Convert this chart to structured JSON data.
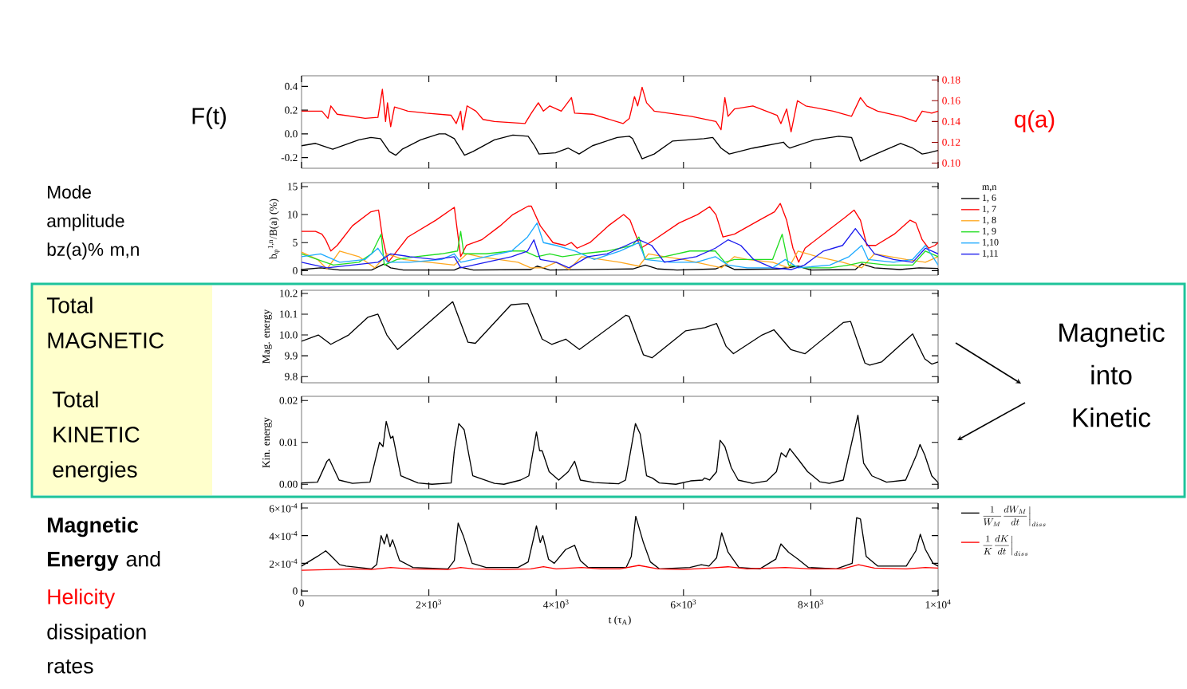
{
  "chart_data": [
    {
      "type": "line",
      "annotations": [
        "F(t)",
        "q(a)"
      ],
      "xlim": [
        0,
        10000
      ],
      "xticks": [
        0,
        2000,
        4000,
        6000,
        8000,
        10000
      ],
      "ylim": [
        -0.29,
        0.49
      ],
      "yticks": [
        -0.2,
        {
          "value": 0,
          "label": "0.0"
        },
        0.2,
        0.4
      ],
      "y2lim": [
        0.095,
        0.184
      ],
      "y2ticks": [
        {
          "value": 0.1,
          "label": "0.10"
        },
        0.12,
        0.14,
        0.16,
        0.18
      ],
      "tick_labels": "y",
      "series": [
        {
          "color": "#000000",
          "x": [
            0,
            220,
            490,
            900,
            1090,
            1240,
            1380,
            1480,
            1580,
            1870,
            2160,
            2260,
            2400,
            2560,
            2690,
            3030,
            3320,
            3560,
            3660,
            3730,
            3990,
            4190,
            4360,
            4570,
            4960,
            5150,
            5200,
            5350,
            5540,
            5830,
            6320,
            6460,
            6590,
            6720,
            7090,
            7570,
            7620,
            7670,
            8060,
            8440,
            8640,
            8780,
            8980,
            9410,
            9600,
            9750,
            9850,
            10000
          ],
          "values": [
            -0.1,
            -0.08,
            -0.13,
            -0.05,
            -0.03,
            -0.04,
            -0.15,
            -0.18,
            -0.13,
            -0.05,
            0.0,
            0.0,
            -0.04,
            -0.18,
            -0.15,
            -0.05,
            -0.01,
            -0.02,
            -0.1,
            -0.17,
            -0.16,
            -0.12,
            -0.17,
            -0.1,
            -0.03,
            -0.02,
            -0.04,
            -0.21,
            -0.17,
            -0.06,
            -0.04,
            -0.03,
            -0.12,
            -0.17,
            -0.12,
            -0.07,
            -0.1,
            -0.12,
            -0.05,
            -0.02,
            -0.03,
            -0.23,
            -0.18,
            -0.08,
            -0.12,
            -0.17,
            -0.16,
            -0.14
          ]
        },
        {
          "color": "#ff0000",
          "axis": "y2",
          "x": [
            0,
            320,
            415,
            460,
            560,
            1000,
            1200,
            1270,
            1320,
            1350,
            1400,
            1460,
            1670,
            1960,
            2350,
            2430,
            2500,
            2530,
            2600,
            2740,
            2850,
            3030,
            3510,
            3610,
            3720,
            3800,
            3900,
            4080,
            4240,
            4290,
            4570,
            5050,
            5150,
            5230,
            5280,
            5350,
            5420,
            5540,
            6120,
            6510,
            6590,
            6650,
            6700,
            6800,
            7090,
            7470,
            7530,
            7620,
            7690,
            7790,
            7920,
            8350,
            8640,
            8780,
            8880,
            9050,
            9410,
            9650,
            9750,
            9900,
            10000
          ],
          "values": [
            0.15,
            0.15,
            0.143,
            0.155,
            0.147,
            0.143,
            0.144,
            0.171,
            0.14,
            0.158,
            0.135,
            0.154,
            0.15,
            0.148,
            0.146,
            0.138,
            0.15,
            0.132,
            0.155,
            0.15,
            0.142,
            0.14,
            0.138,
            0.148,
            0.158,
            0.15,
            0.155,
            0.15,
            0.163,
            0.148,
            0.147,
            0.138,
            0.143,
            0.164,
            0.155,
            0.173,
            0.158,
            0.15,
            0.145,
            0.14,
            0.132,
            0.163,
            0.145,
            0.152,
            0.155,
            0.146,
            0.138,
            0.152,
            0.13,
            0.16,
            0.155,
            0.15,
            0.145,
            0.163,
            0.155,
            0.15,
            0.145,
            0.14,
            0.15,
            0.148,
            0.15
          ]
        }
      ]
    },
    {
      "type": "line",
      "annotations": [
        "Mode amplitude bz(a)% m,n"
      ],
      "ylabel": "b$_{φ}$$^{1,n}$/B(a) (%)",
      "legend": "right",
      "legend_title": "m,n",
      "xlim": [
        0,
        10000
      ],
      "xticks": [
        0,
        2000,
        4000,
        6000,
        8000,
        10000
      ],
      "ylim": [
        -0.8,
        15.7
      ],
      "yticks": [
        0,
        5,
        10,
        15
      ],
      "tick_labels": "y",
      "series": [
        {
          "name": "1, 6",
          "color": "#000000",
          "x": [
            0,
            300,
            600,
            1100,
            1300,
            1400,
            1600,
            2400,
            2500,
            2700,
            3600,
            3700,
            3900,
            5200,
            5400,
            5600,
            5900,
            6500,
            6650,
            6800,
            7500,
            7800,
            8000,
            8700,
            8800,
            9000,
            9400,
            9700,
            10000
          ],
          "values": [
            0.2,
            0.5,
            0.1,
            0.1,
            1.2,
            0.5,
            0.1,
            0.1,
            0.6,
            0.1,
            0.2,
            0.8,
            0.1,
            0.3,
            1.0,
            0.3,
            0.1,
            0.3,
            1.0,
            0.2,
            0.3,
            0.8,
            0.1,
            0.2,
            1.2,
            0.5,
            0.2,
            0.5,
            0.4
          ]
        },
        {
          "name": "1, 7",
          "color": "#ff0000",
          "x": [
            0,
            220,
            320,
            380,
            460,
            560,
            800,
            1090,
            1210,
            1270,
            1360,
            1430,
            1670,
            2110,
            2400,
            2500,
            2590,
            2830,
            3120,
            3320,
            3560,
            3610,
            3750,
            3950,
            4140,
            4240,
            4330,
            4530,
            4820,
            5060,
            5160,
            5330,
            5540,
            5930,
            6220,
            6410,
            6510,
            6620,
            6800,
            7190,
            7430,
            7520,
            7620,
            7720,
            7810,
            7910,
            8250,
            8540,
            8680,
            8780,
            8880,
            9020,
            9310,
            9560,
            9650,
            9750,
            9850,
            9950,
            10000
          ],
          "values": [
            7,
            7,
            6.5,
            5.5,
            3.5,
            4.5,
            8,
            10.5,
            10.8,
            6,
            1.5,
            2.5,
            6,
            9,
            11.3,
            2.5,
            4.5,
            5.5,
            8,
            10,
            11.5,
            11.5,
            8,
            5,
            4.5,
            5,
            4,
            5,
            8,
            10,
            9,
            4,
            5.5,
            8.5,
            10,
            11.4,
            10,
            6,
            6.5,
            9,
            10.5,
            12,
            9,
            4,
            1.5,
            4,
            7,
            9.5,
            10.8,
            9,
            4.5,
            4.5,
            6.5,
            9,
            8.5,
            5.5,
            4,
            4.5,
            5
          ]
        },
        {
          "name": "1, 8",
          "color": "#ffa820",
          "x": [
            0,
            250,
            400,
            600,
            900,
            1150,
            1350,
            1600,
            2000,
            2400,
            2600,
            2800,
            3100,
            3400,
            3600,
            3800,
            4000,
            4200,
            4400,
            4700,
            5000,
            5300,
            5450,
            5700,
            6000,
            6400,
            6600,
            6800,
            7000,
            7400,
            7650,
            7800,
            8100,
            8500,
            8800,
            9000,
            9500,
            9800,
            10000
          ],
          "values": [
            3.3,
            2,
            0.3,
            3.5,
            2.5,
            0.5,
            3,
            2,
            1.5,
            1,
            3,
            2.5,
            2,
            1.5,
            0.5,
            0.5,
            1.5,
            0.2,
            2.5,
            2,
            1.5,
            0.8,
            3,
            2.5,
            2,
            1,
            0.5,
            2.5,
            2,
            1.5,
            0.5,
            3.5,
            2.5,
            1.5,
            0.5,
            3,
            2,
            1.5,
            2.5
          ]
        },
        {
          "name": "1, 9",
          "color": "#22dd22",
          "x": [
            0,
            250,
            500,
            900,
            1100,
            1250,
            1300,
            1500,
            1800,
            2200,
            2450,
            2500,
            2550,
            2900,
            3300,
            3500,
            3700,
            3900,
            4100,
            4400,
            4800,
            5200,
            5300,
            5400,
            5700,
            6100,
            6500,
            6650,
            6800,
            7400,
            7550,
            7650,
            7900,
            8300,
            8600,
            8800,
            9200,
            9600,
            9800,
            10000
          ],
          "values": [
            3,
            2,
            1,
            1.5,
            3,
            6.5,
            1,
            2,
            2.5,
            3,
            3.5,
            7,
            3,
            3,
            3.5,
            3.5,
            2.5,
            3,
            2.5,
            3,
            3.5,
            4.5,
            6,
            2,
            2.5,
            3.5,
            3.5,
            1.5,
            2,
            2,
            6.5,
            1,
            0.5,
            0.5,
            1,
            1.5,
            1,
            1,
            3.5,
            2.5
          ]
        },
        {
          "name": "1,10",
          "color": "#1eaaff",
          "x": [
            0,
            300,
            600,
            1000,
            1200,
            1350,
            1700,
            2200,
            2400,
            2500,
            2900,
            3300,
            3550,
            3700,
            3800,
            4000,
            4300,
            4600,
            5000,
            5300,
            5400,
            5800,
            6200,
            6500,
            6700,
            7000,
            7400,
            7600,
            7800,
            8300,
            8600,
            8800,
            8900,
            9300,
            9600,
            9800,
            10000
          ],
          "values": [
            2.5,
            3,
            1.5,
            2,
            4,
            1.5,
            1.5,
            2,
            3,
            1.5,
            2.5,
            3.5,
            6,
            8.5,
            5,
            4.5,
            3.5,
            2,
            3.5,
            5,
            2,
            1.5,
            1.5,
            2.5,
            1,
            0.5,
            0.5,
            2,
            0.5,
            1,
            2.5,
            4.5,
            2,
            1.5,
            2,
            4.5,
            1
          ]
        },
        {
          "name": "1,11",
          "color": "#1a1aee",
          "x": [
            0,
            400,
            800,
            1200,
            1400,
            1700,
            2100,
            2400,
            2500,
            2900,
            3300,
            3550,
            3650,
            3750,
            4000,
            4200,
            4500,
            4800,
            5100,
            5300,
            5500,
            5700,
            6200,
            6500,
            6700,
            6900,
            7100,
            7400,
            7700,
            7900,
            8200,
            8500,
            8700,
            8800,
            9000,
            9300,
            9600,
            9800,
            10000
          ],
          "values": [
            1.5,
            0.5,
            1,
            1.5,
            3,
            2.5,
            2,
            2.5,
            0.5,
            1.5,
            2.5,
            3.5,
            5.5,
            2,
            1.5,
            0.5,
            2.5,
            3,
            4.5,
            5.5,
            4.5,
            1.5,
            2.5,
            4,
            5.5,
            4.5,
            2,
            0.5,
            0.2,
            1,
            3.5,
            4.5,
            7.5,
            6,
            3,
            2,
            1.5,
            4,
            3
          ]
        }
      ]
    },
    {
      "type": "line",
      "annotations": [
        "Total MAGNETIC",
        "Magnetic into Kinetic"
      ],
      "ylabel": "Mag. energy",
      "xlim": [
        0,
        10000
      ],
      "xticks": [
        0,
        2000,
        4000,
        6000,
        8000,
        10000
      ],
      "ylim": [
        9.77,
        10.215
      ],
      "yticks": [
        9.8,
        9.9,
        {
          "value": 10,
          "label": "10.0"
        },
        10.1,
        10.2
      ],
      "tick_labels": "y",
      "series": [
        {
          "color": "#000000",
          "x": [
            0,
            263,
            460,
            740,
            1040,
            1200,
            1340,
            1510,
            2375,
            2615,
            2730,
            3290,
            3480,
            3555,
            3780,
            3930,
            4150,
            4365,
            5095,
            5145,
            5370,
            5505,
            6035,
            6335,
            6520,
            6670,
            6785,
            7235,
            7420,
            7685,
            7910,
            8510,
            8625,
            8850,
            8925,
            9110,
            9600,
            9790,
            9900,
            10000
          ],
          "values": [
            9.97,
            10.0,
            9.955,
            10.0,
            10.085,
            10.1,
            10.0,
            9.93,
            10.16,
            9.965,
            9.96,
            10.145,
            10.15,
            10.15,
            9.98,
            9.955,
            9.98,
            9.93,
            10.095,
            10.09,
            9.905,
            9.89,
            10.02,
            10.035,
            10.055,
            9.945,
            9.91,
            10.0,
            10.025,
            9.93,
            9.91,
            10.06,
            10.065,
            9.865,
            9.855,
            9.87,
            10.005,
            9.885,
            9.86,
            9.87
          ]
        }
      ]
    },
    {
      "type": "line",
      "annotations": [
        "Total KINETIC energies"
      ],
      "ylabel": "Kin. energy",
      "xlim": [
        0,
        10000
      ],
      "xticks": [
        0,
        2000,
        4000,
        6000,
        8000,
        10000
      ],
      "ylim": [
        -0.0011,
        0.021
      ],
      "yticks": [
        {
          "value": 0,
          "label": "0.00"
        },
        {
          "value": 0.01,
          "label": "0.01"
        },
        {
          "value": 0.02,
          "label": "0.02"
        }
      ],
      "tick_labels": "y",
      "series": [
        {
          "color": "#000000",
          "x": [
            0,
            250,
            400,
            435,
            590,
            800,
            1075,
            1225,
            1280,
            1330,
            1400,
            1435,
            1560,
            1830,
            2050,
            2350,
            2400,
            2470,
            2555,
            2690,
            3030,
            3180,
            3440,
            3570,
            3690,
            3740,
            3780,
            3890,
            4040,
            4190,
            4290,
            4380,
            4600,
            4980,
            5090,
            5245,
            5320,
            5420,
            5510,
            5620,
            5880,
            6110,
            6300,
            6330,
            6410,
            6520,
            6575,
            6650,
            6750,
            6860,
            7085,
            7310,
            7460,
            7535,
            7610,
            7670,
            7800,
            7950,
            8140,
            8290,
            8510,
            8740,
            8830,
            8960,
            9190,
            9490,
            9660,
            9715,
            9790,
            9900,
            10000
          ],
          "values": [
            0.0003,
            0.0005,
            0.0055,
            0.006,
            0.001,
            0.0002,
            0.0005,
            0.01,
            0.009,
            0.015,
            0.011,
            0.0115,
            0.002,
            0.0003,
            0,
            0.0003,
            0.008,
            0.0145,
            0.013,
            0.002,
            0.0002,
            0,
            0.001,
            0.002,
            0.0125,
            0.008,
            0.008,
            0.003,
            0.001,
            0.003,
            0.0055,
            0.001,
            0.0004,
            0.0001,
            0.001,
            0.0145,
            0.012,
            0.002,
            0.0015,
            0.0003,
            0,
            0.0008,
            0.001,
            0.0015,
            0.001,
            0.003,
            0.0105,
            0.009,
            0.004,
            0.001,
            0.0002,
            0.0008,
            0.003,
            0.0075,
            0.0065,
            0.0085,
            0.006,
            0.003,
            0.0006,
            0.0002,
            0.001,
            0.0165,
            0.005,
            0.002,
            0.0005,
            0.001,
            0.007,
            0.0095,
            0.007,
            0.002,
            0.0004
          ]
        }
      ]
    },
    {
      "type": "line",
      "annotations": [
        "**Magnetic Energy** and",
        "Helicity",
        "dissipation rates"
      ],
      "xlabel": "t (τ$_{A}$)",
      "legend": "right",
      "xlim": [
        0,
        10000
      ],
      "xticks": [
        0,
        {
          "value": 2000,
          "label": "2×10$^{3}$"
        },
        {
          "value": 4000,
          "label": "4×10$^{3}$"
        },
        {
          "value": 6000,
          "label": "6×10$^{3}$"
        },
        {
          "value": 8000,
          "label": "8×10$^{3}$"
        },
        {
          "value": 10000,
          "label": "1×10$^{4}$"
        }
      ],
      "ylim": [
        -3.4e-05,
        0.000634
      ],
      "yticks": [
        0,
        {
          "value": 0.0002,
          "label": "2×10$^{-4}$"
        },
        {
          "value": 0.0004,
          "label": "4×10$^{-4}$"
        },
        {
          "value": 0.0006,
          "label": "6×10$^{-4}$"
        }
      ],
      "series": [
        {
          "name": "\\frac{1}{W_{M}}\\frac{dW_{M}}{dt}\\Big|_{diss}",
          "color": "#000000",
          "x": [
            0,
            250,
            380,
            450,
            600,
            700,
            1100,
            1180,
            1250,
            1300,
            1340,
            1390,
            1430,
            1540,
            1750,
            2300,
            2400,
            2460,
            2540,
            2680,
            2900,
            3400,
            3560,
            3690,
            3750,
            3790,
            3880,
            3970,
            4150,
            4290,
            4380,
            4500,
            5100,
            5180,
            5250,
            5370,
            5480,
            5620,
            6100,
            6280,
            6400,
            6520,
            6600,
            6700,
            6870,
            7200,
            7450,
            7530,
            7650,
            7800,
            7960,
            8400,
            8650,
            8720,
            8780,
            8870,
            9050,
            9500,
            9650,
            9720,
            9800,
            9920,
            10000
          ],
          "values": [
            0.00018,
            0.00025,
            0.00029,
            0.00026,
            0.00019,
            0.00018,
            0.00016,
            0.00019,
            0.0004,
            0.00034,
            0.00041,
            0.00032,
            0.00037,
            0.00022,
            0.00017,
            0.00016,
            0.00022,
            0.00049,
            0.0004,
            0.0002,
            0.00017,
            0.00017,
            0.00021,
            0.00047,
            0.00035,
            0.0004,
            0.00023,
            0.0002,
            0.0003,
            0.00033,
            0.00022,
            0.00017,
            0.00017,
            0.00025,
            0.00054,
            0.00035,
            0.00021,
            0.00016,
            0.00017,
            0.00019,
            0.00018,
            0.00024,
            0.00042,
            0.00028,
            0.00017,
            0.00016,
            0.00023,
            0.00034,
            0.00028,
            0.00023,
            0.00017,
            0.00016,
            0.0002,
            0.00053,
            0.00052,
            0.00025,
            0.00018,
            0.00018,
            0.00029,
            0.00041,
            0.0003,
            0.0002,
            0.00018
          ]
        },
        {
          "name": "\\frac{1}{K}\\frac{dK}{dt}\\Big|_{diss}",
          "color": "#ff0000",
          "x": [
            0,
            500,
            800,
            1100,
            1400,
            1700,
            2300,
            2500,
            2700,
            3200,
            3600,
            3800,
            4000,
            4400,
            4700,
            5000,
            5300,
            5600,
            6000,
            6400,
            6700,
            7000,
            7600,
            8000,
            8500,
            8750,
            9000,
            9500,
            9800,
            10000
          ],
          "values": [
            0.00015,
            0.000155,
            0.00016,
            0.000155,
            0.00017,
            0.00016,
            0.000155,
            0.00017,
            0.00016,
            0.000155,
            0.00016,
            0.000175,
            0.00016,
            0.00017,
            0.00016,
            0.00016,
            0.000185,
            0.00016,
            0.000155,
            0.000165,
            0.000175,
            0.00016,
            0.00017,
            0.00016,
            0.00016,
            0.00019,
            0.000165,
            0.00016,
            0.00017,
            0.000165
          ]
        }
      ]
    }
  ]
}
